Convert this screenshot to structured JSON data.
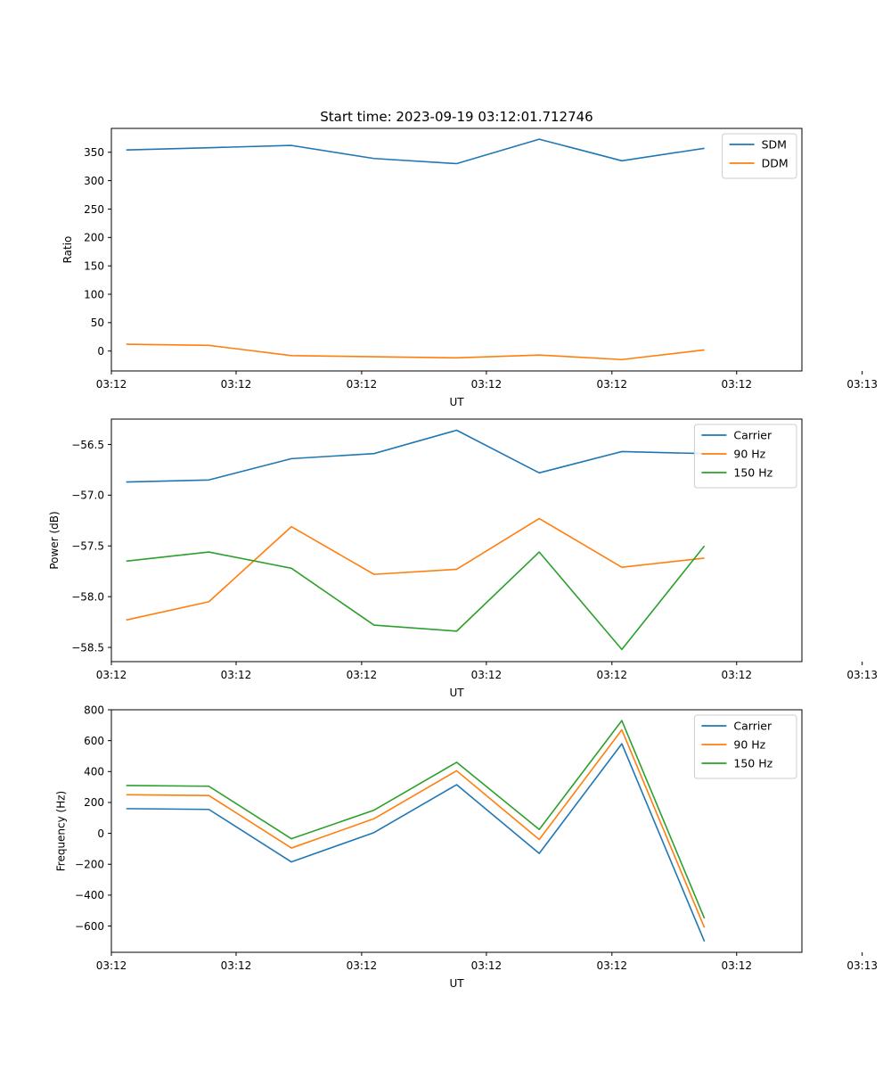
{
  "chart_data": [
    {
      "type": "line",
      "title": "Start time: 2023-09-19 03:12:01.712746",
      "xlabel": "UT",
      "ylabel": "Ratio",
      "x": [
        1,
        2,
        3,
        4,
        5,
        6,
        7,
        8
      ],
      "xlim": [
        0.82,
        9.18
      ],
      "x_ticks": [
        0.82,
        2.33,
        3.85,
        5.36,
        6.88,
        8.39,
        9.91
      ],
      "x_tick_labels": [
        "03:12",
        "03:12",
        "03:12",
        "03:12",
        "03:12",
        "03:12",
        "03:13"
      ],
      "ylim": [
        -35,
        392
      ],
      "y_ticks": [
        0,
        50,
        100,
        150,
        200,
        250,
        300,
        350
      ],
      "y_tick_labels": [
        "0",
        "50",
        "100",
        "150",
        "200",
        "250",
        "300",
        "350"
      ],
      "legend_position": "top-right",
      "series": [
        {
          "name": "SDM",
          "color": "#1f77b4",
          "values": [
            354,
            358,
            362,
            339,
            330,
            373,
            335,
            357
          ]
        },
        {
          "name": "DDM",
          "color": "#ff7f0e",
          "values": [
            12,
            10,
            -8,
            -10,
            -12,
            -7,
            -15,
            2
          ]
        }
      ]
    },
    {
      "type": "line",
      "title": "",
      "xlabel": "UT",
      "ylabel": "Power (dB)",
      "x": [
        1,
        2,
        3,
        4,
        5,
        6,
        7,
        8
      ],
      "xlim": [
        0.82,
        9.18
      ],
      "x_ticks": [
        0.82,
        2.33,
        3.85,
        5.36,
        6.88,
        8.39,
        9.91
      ],
      "x_tick_labels": [
        "03:12",
        "03:12",
        "03:12",
        "03:12",
        "03:12",
        "03:12",
        "03:13"
      ],
      "ylim": [
        -58.64,
        -56.25
      ],
      "y_ticks": [
        -58.5,
        -58.0,
        -57.5,
        -57.0,
        -56.5
      ],
      "y_tick_labels": [
        "−58.5",
        "−58.0",
        "−57.5",
        "−57.0",
        "−56.5"
      ],
      "legend_position": "top-right",
      "series": [
        {
          "name": "Carrier",
          "color": "#1f77b4",
          "values": [
            -56.87,
            -56.85,
            -56.64,
            -56.59,
            -56.36,
            -56.78,
            -56.57,
            -56.59
          ]
        },
        {
          "name": "90 Hz",
          "color": "#ff7f0e",
          "values": [
            -58.23,
            -58.05,
            -57.31,
            -57.78,
            -57.73,
            -57.23,
            -57.71,
            -57.62
          ]
        },
        {
          "name": "150 Hz",
          "color": "#2ca02c",
          "values": [
            -57.65,
            -57.56,
            -57.72,
            -58.28,
            -58.34,
            -57.56,
            -58.52,
            -57.5
          ]
        }
      ]
    },
    {
      "type": "line",
      "title": "",
      "xlabel": "UT",
      "ylabel": "Frequency (Hz)",
      "x": [
        1,
        2,
        3,
        4,
        5,
        6,
        7,
        8
      ],
      "xlim": [
        0.82,
        9.18
      ],
      "x_ticks": [
        0.82,
        2.33,
        3.85,
        5.36,
        6.88,
        8.39,
        9.91
      ],
      "x_tick_labels": [
        "03:12",
        "03:12",
        "03:12",
        "03:12",
        "03:12",
        "03:12",
        "03:13"
      ],
      "ylim": [
        -770,
        800
      ],
      "y_ticks": [
        -600,
        -400,
        -200,
        0,
        200,
        400,
        600,
        800
      ],
      "y_tick_labels": [
        "−600",
        "−400",
        "−200",
        "0",
        "200",
        "400",
        "600",
        "800"
      ],
      "legend_position": "top-right",
      "series": [
        {
          "name": "Carrier",
          "color": "#1f77b4",
          "values": [
            160,
            155,
            -185,
            5,
            315,
            -130,
            580,
            -700
          ]
        },
        {
          "name": "90 Hz",
          "color": "#ff7f0e",
          "values": [
            250,
            245,
            -95,
            95,
            405,
            -40,
            670,
            -610
          ]
        },
        {
          "name": "150 Hz",
          "color": "#2ca02c",
          "values": [
            310,
            305,
            -35,
            150,
            460,
            25,
            730,
            -550
          ]
        }
      ]
    }
  ]
}
